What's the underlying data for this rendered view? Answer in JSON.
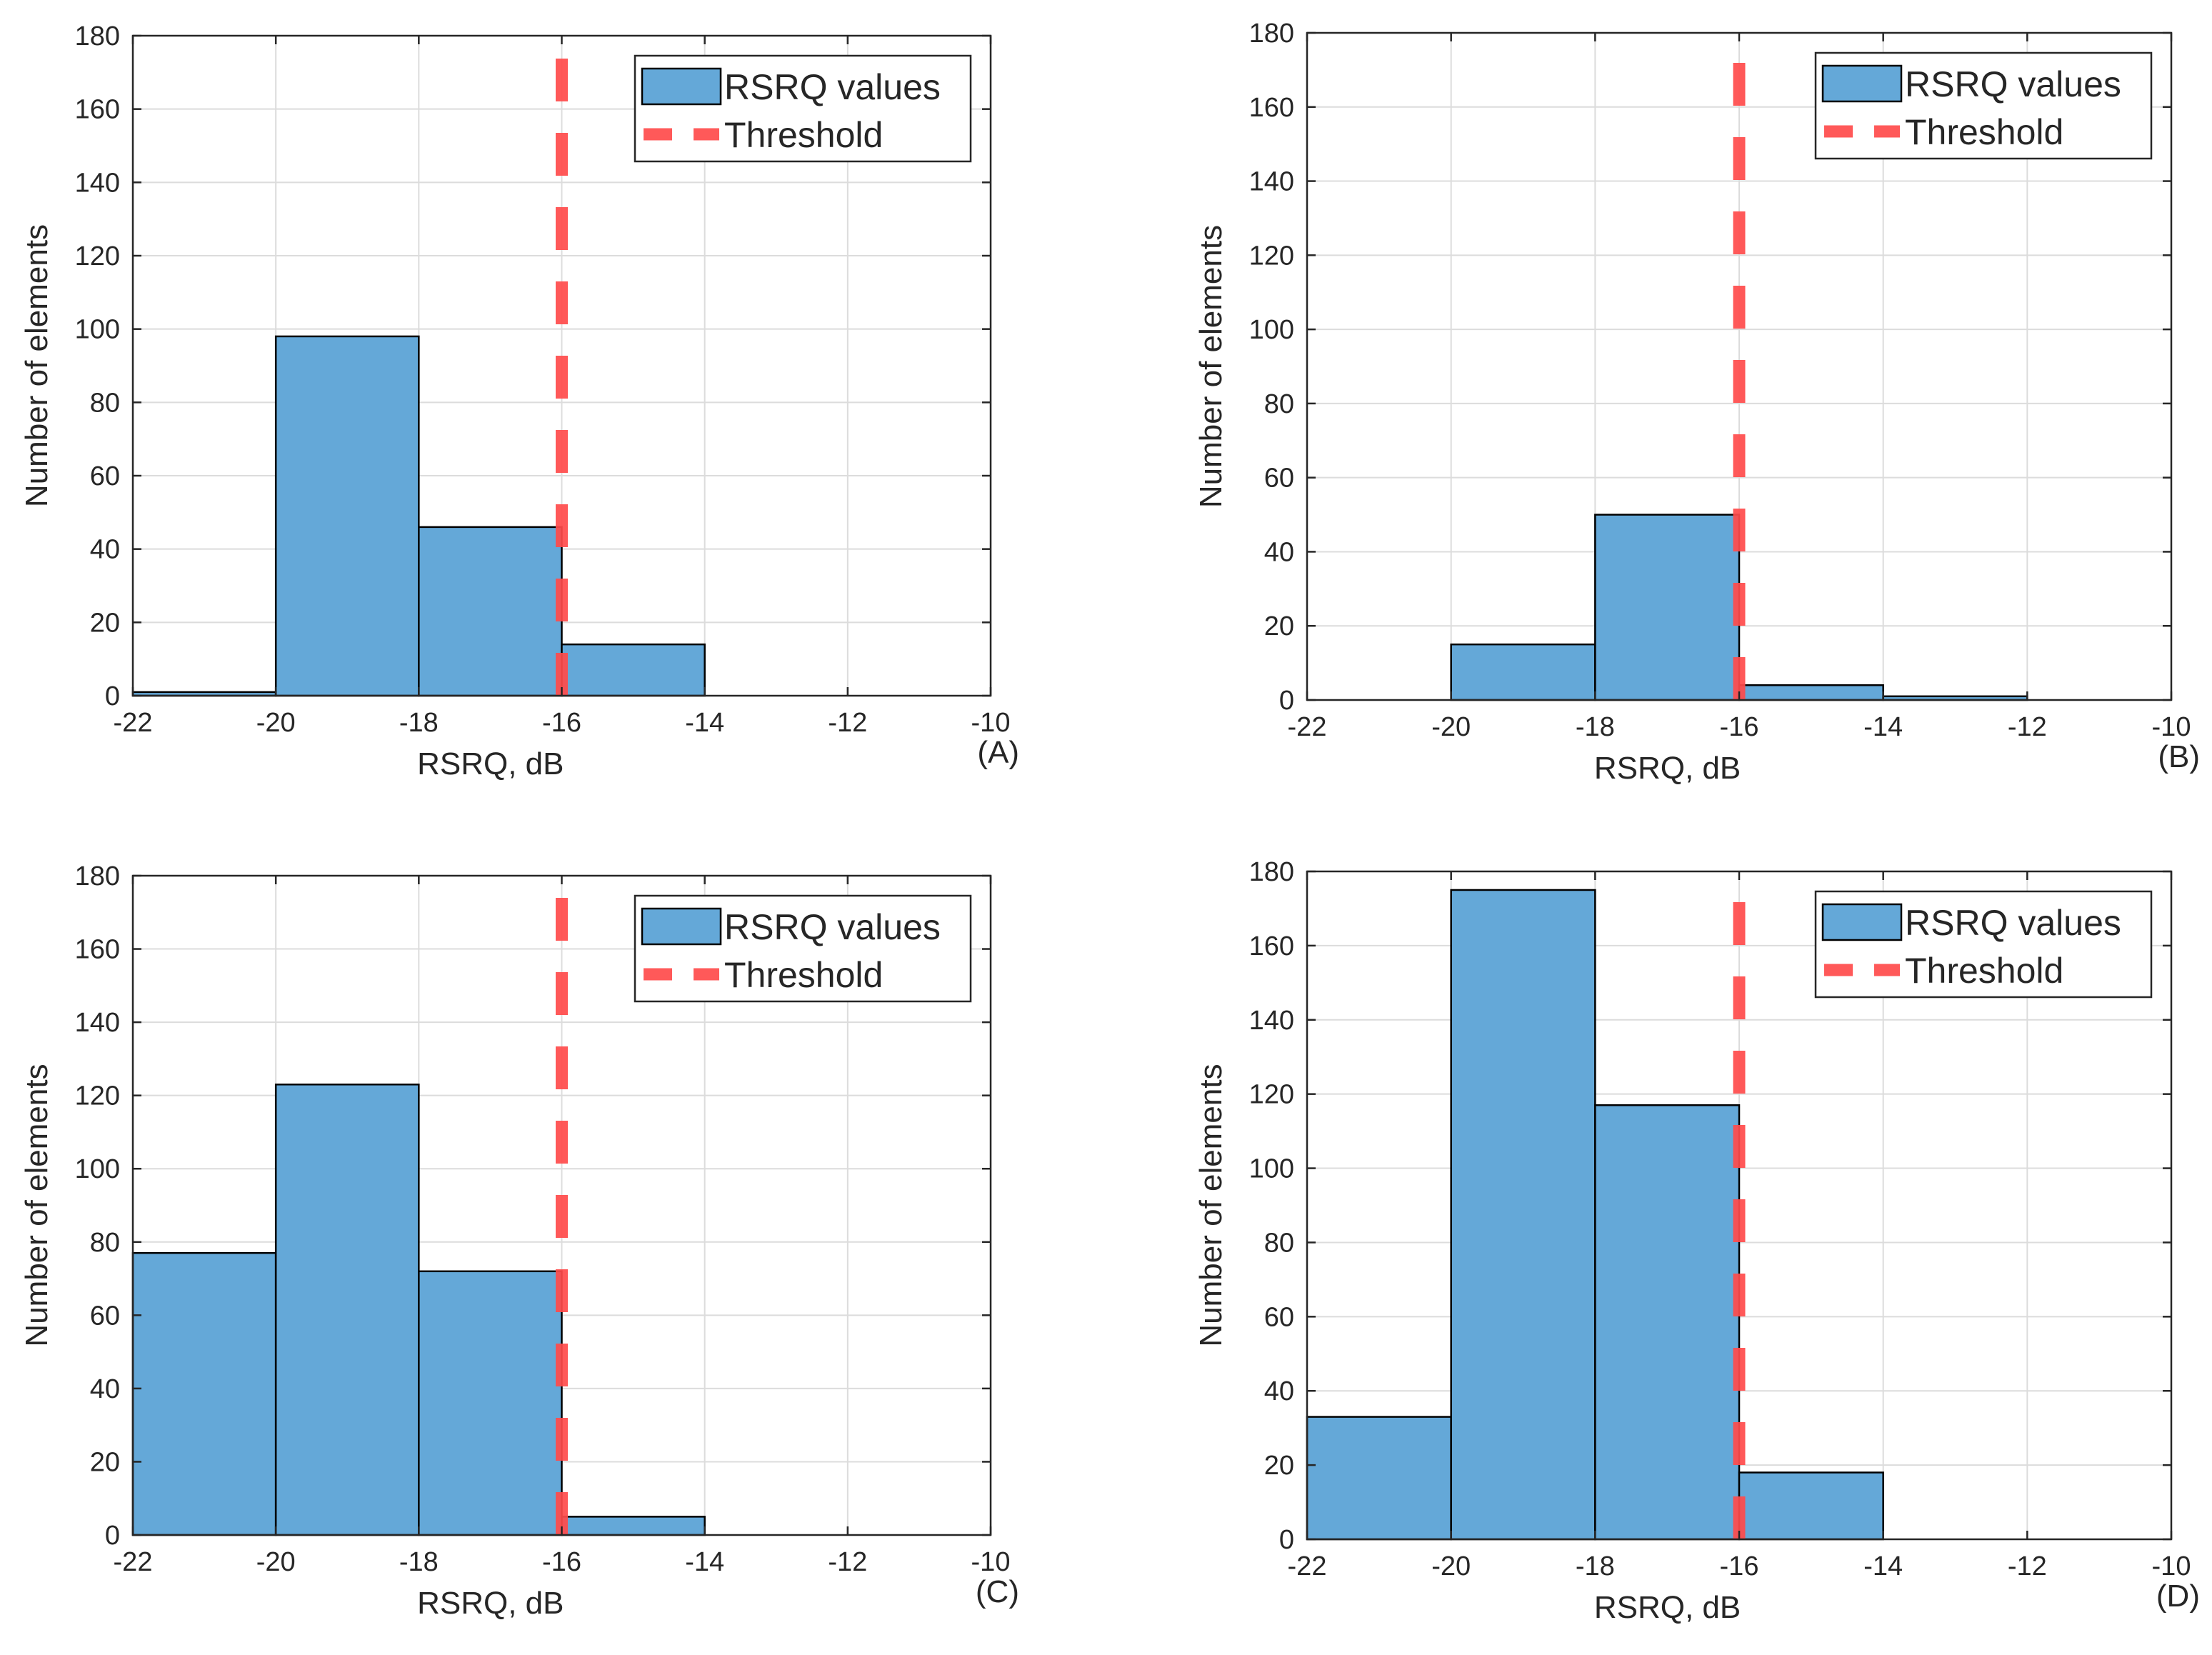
{
  "chart_data": [
    {
      "type": "bar",
      "panel": "(A)",
      "xlabel": "RSRQ, dB",
      "ylabel": "Number of elements",
      "xlim": [
        -22,
        -10
      ],
      "ylim": [
        0,
        180
      ],
      "xticks": [
        -22,
        -20,
        -18,
        -16,
        -14,
        -12,
        -10
      ],
      "yticks": [
        0,
        20,
        40,
        60,
        80,
        100,
        120,
        140,
        160,
        180
      ],
      "grid": true,
      "bin_edges": [
        -22,
        -20,
        -18,
        -16,
        -14,
        -12
      ],
      "values": [
        1,
        98,
        46,
        14,
        0
      ],
      "threshold": -16,
      "legend": {
        "position": "top-right",
        "entries": [
          "RSRQ values",
          "Threshold"
        ]
      },
      "colors": {
        "bar": "#64a8d8",
        "threshold": "#ff4b4b"
      }
    },
    {
      "type": "bar",
      "panel": "(B)",
      "xlabel": "RSRQ, dB",
      "ylabel": "Number of elements",
      "xlim": [
        -22,
        -10
      ],
      "ylim": [
        0,
        180
      ],
      "xticks": [
        -22,
        -20,
        -18,
        -16,
        -14,
        -12,
        -10
      ],
      "yticks": [
        0,
        20,
        40,
        60,
        80,
        100,
        120,
        140,
        160,
        180
      ],
      "grid": true,
      "bin_edges": [
        -20,
        -18,
        -16,
        -14,
        -12
      ],
      "values": [
        15,
        50,
        4,
        1
      ],
      "threshold": -16,
      "legend": {
        "position": "top-right",
        "entries": [
          "RSRQ values",
          "Threshold"
        ]
      },
      "colors": {
        "bar": "#64a8d8",
        "threshold": "#ff4b4b"
      }
    },
    {
      "type": "bar",
      "panel": "(C)",
      "xlabel": "RSRQ, dB",
      "ylabel": "Number of elements",
      "xlim": [
        -22,
        -10
      ],
      "ylim": [
        0,
        180
      ],
      "xticks": [
        -22,
        -20,
        -18,
        -16,
        -14,
        -12,
        -10
      ],
      "yticks": [
        0,
        20,
        40,
        60,
        80,
        100,
        120,
        140,
        160,
        180
      ],
      "grid": true,
      "bin_edges": [
        -22,
        -20,
        -18,
        -16,
        -14,
        -12
      ],
      "values": [
        77,
        123,
        72,
        5,
        0
      ],
      "threshold": -16,
      "legend": {
        "position": "top-right",
        "entries": [
          "RSRQ values",
          "Threshold"
        ]
      },
      "colors": {
        "bar": "#64a8d8",
        "threshold": "#ff4b4b"
      }
    },
    {
      "type": "bar",
      "panel": "(D)",
      "xlabel": "RSRQ, dB",
      "ylabel": "Number of elements",
      "xlim": [
        -22,
        -10
      ],
      "ylim": [
        0,
        180
      ],
      "xticks": [
        -22,
        -20,
        -18,
        -16,
        -14,
        -12,
        -10
      ],
      "yticks": [
        0,
        20,
        40,
        60,
        80,
        100,
        120,
        140,
        160,
        180
      ],
      "grid": true,
      "bin_edges": [
        -22,
        -20,
        -18,
        -16,
        -14,
        -12
      ],
      "values": [
        33,
        175,
        117,
        18,
        0
      ],
      "threshold": -16,
      "legend": {
        "position": "top-right",
        "entries": [
          "RSRQ values",
          "Threshold"
        ]
      },
      "colors": {
        "bar": "#64a8d8",
        "threshold": "#ff4b4b"
      }
    }
  ]
}
